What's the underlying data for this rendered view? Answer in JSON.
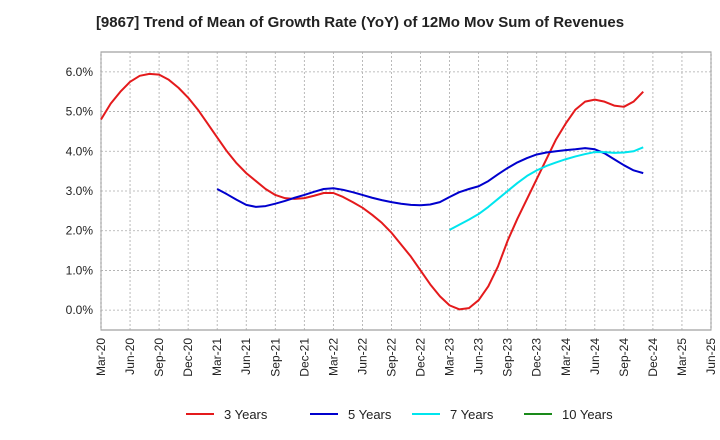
{
  "chart_data": {
    "type": "line",
    "title": "[9867]  Trend of Mean of Growth Rate (YoY) of 12Mo Mov Sum of Revenues",
    "xlabel": "",
    "ylabel": "",
    "ylim": [
      -0.5,
      6.5
    ],
    "yticks": [
      0,
      1,
      2,
      3,
      4,
      5,
      6
    ],
    "ytick_labels": [
      "0.0%",
      "1.0%",
      "2.0%",
      "3.0%",
      "4.0%",
      "5.0%",
      "6.0%"
    ],
    "x_tick_labels": [
      "Mar-20",
      "Jun-20",
      "Sep-20",
      "Dec-20",
      "Mar-21",
      "Jun-21",
      "Sep-21",
      "Dec-21",
      "Mar-22",
      "Jun-22",
      "Sep-22",
      "Dec-22",
      "Mar-23",
      "Jun-23",
      "Sep-23",
      "Dec-23",
      "Mar-24",
      "Jun-24",
      "Sep-24",
      "Dec-24",
      "Mar-25",
      "Jun-25"
    ],
    "x_range_months": [
      0,
      63
    ],
    "grid": true,
    "legend_position": "bottom",
    "series": [
      {
        "name": "3 Years",
        "color": "#e41a1c",
        "x": [
          0,
          1,
          2,
          3,
          4,
          5,
          6,
          7,
          8,
          9,
          10,
          11,
          12,
          13,
          14,
          15,
          16,
          17,
          18,
          19,
          20,
          21,
          22,
          23,
          24,
          25,
          26,
          27,
          28,
          29,
          30,
          31,
          32,
          33,
          34,
          35,
          36,
          37,
          38,
          39,
          40,
          41,
          42,
          43,
          44,
          45,
          46,
          47,
          48,
          49,
          50,
          51,
          52,
          53,
          54,
          55,
          56,
          57,
          58,
          59,
          60,
          61,
          62,
          63
        ],
        "values": [
          4.8,
          5.2,
          5.5,
          5.75,
          5.9,
          5.95,
          5.93,
          5.8,
          5.6,
          5.35,
          5.05,
          4.7,
          4.35,
          4.0,
          3.7,
          3.45,
          3.25,
          3.05,
          2.9,
          2.82,
          2.8,
          2.82,
          2.88,
          2.95,
          2.95,
          2.85,
          2.72,
          2.58,
          2.4,
          2.2,
          1.95,
          1.65,
          1.35,
          1.0,
          0.65,
          0.35,
          0.12,
          0.02,
          0.05,
          0.25,
          0.6,
          1.1,
          1.75,
          2.3,
          2.8,
          3.3,
          3.8,
          4.3,
          4.7,
          5.05,
          5.25,
          5.3,
          5.25,
          5.15,
          5.12,
          5.25,
          5.5,
          null,
          null,
          null,
          null,
          null,
          null,
          null
        ]
      },
      {
        "name": "5 Years",
        "color": "#0000cd",
        "x": [
          12,
          13,
          14,
          15,
          16,
          17,
          18,
          19,
          20,
          21,
          22,
          23,
          24,
          25,
          26,
          27,
          28,
          29,
          30,
          31,
          32,
          33,
          34,
          35,
          36,
          37,
          38,
          39,
          40,
          41,
          42,
          43,
          44,
          45,
          46,
          47,
          48,
          49,
          50,
          51,
          52,
          53,
          54,
          55,
          56
        ],
        "values": [
          3.05,
          2.92,
          2.78,
          2.65,
          2.6,
          2.62,
          2.68,
          2.75,
          2.83,
          2.9,
          2.98,
          3.05,
          3.07,
          3.03,
          2.97,
          2.9,
          2.83,
          2.77,
          2.72,
          2.68,
          2.65,
          2.64,
          2.66,
          2.72,
          2.85,
          2.97,
          3.05,
          3.12,
          3.25,
          3.42,
          3.58,
          3.72,
          3.83,
          3.92,
          3.97,
          4.0,
          4.03,
          4.05,
          4.08,
          4.05,
          3.95,
          3.8,
          3.65,
          3.52,
          3.45
        ]
      },
      {
        "name": "7 Years",
        "color": "#00e5ee",
        "x": [
          36,
          37,
          38,
          39,
          40,
          41,
          42,
          43,
          44,
          45,
          46,
          47,
          48,
          49,
          50,
          51,
          52,
          53,
          54,
          55,
          56
        ],
        "values": [
          2.02,
          2.15,
          2.28,
          2.42,
          2.6,
          2.8,
          3.0,
          3.2,
          3.38,
          3.52,
          3.63,
          3.72,
          3.8,
          3.87,
          3.93,
          3.98,
          3.98,
          3.96,
          3.97,
          4.0,
          4.1
        ]
      },
      {
        "name": "10 Years",
        "color": "#1a8a1a",
        "x": [],
        "values": []
      }
    ]
  }
}
